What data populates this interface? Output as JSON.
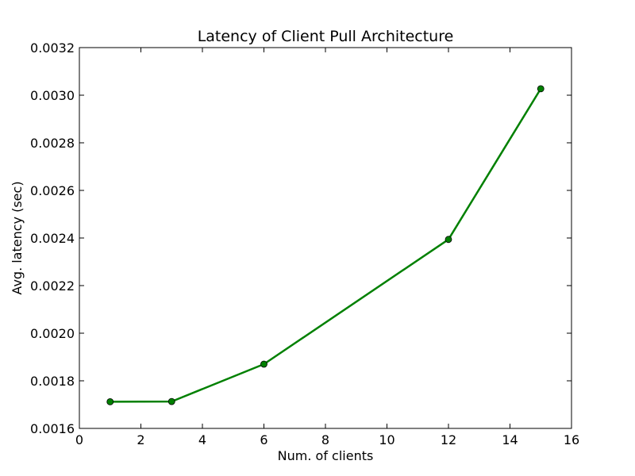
{
  "chart_data": {
    "type": "line",
    "title": "Latency of Client Pull Architecture",
    "xlabel": "Num. of clients",
    "ylabel": "Avg. latency (sec)",
    "xlim": [
      0,
      16
    ],
    "ylim": [
      0.0016,
      0.0032
    ],
    "x_ticks": [
      "0",
      "2",
      "4",
      "6",
      "8",
      "10",
      "12",
      "14",
      "16"
    ],
    "y_ticks": [
      "0.0016",
      "0.0018",
      "0.0020",
      "0.0022",
      "0.0024",
      "0.0026",
      "0.0028",
      "0.0030",
      "0.0032"
    ],
    "grid": false,
    "legend": "none",
    "series": [
      {
        "color": "#008000",
        "marker": "circle",
        "points": [
          {
            "x": 1,
            "y": 0.001712
          },
          {
            "x": 3,
            "y": 0.001713
          },
          {
            "x": 6,
            "y": 0.00187
          },
          {
            "x": 12,
            "y": 0.002394
          },
          {
            "x": 15,
            "y": 0.003027
          }
        ]
      }
    ]
  }
}
